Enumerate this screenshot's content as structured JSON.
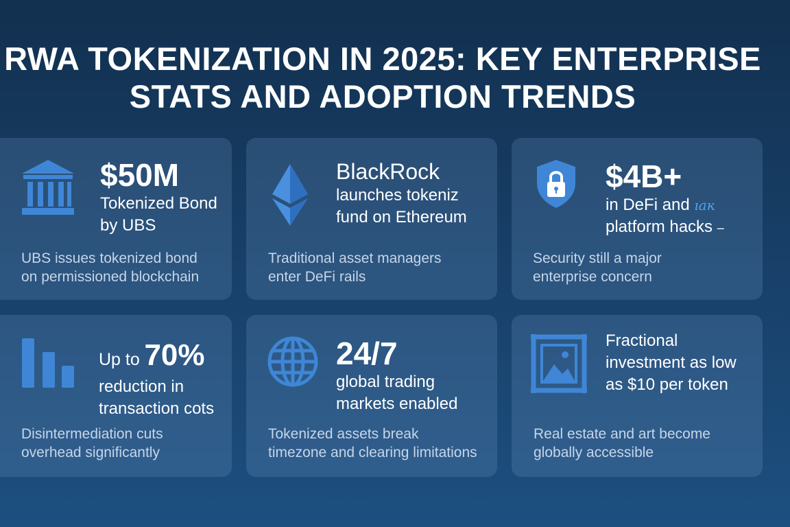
{
  "title": {
    "line1": "RWA TOKENIZATION IN 2025: KEY ENTERPRISE",
    "line2": "STATS AND ADOPTION TRENDS"
  },
  "cards": [
    {
      "icon": "bank-icon",
      "big": "$50M",
      "lines": [
        "Tokenized Bond",
        "by UBS"
      ],
      "desc": [
        "UBS issues tokenized bond",
        "on permissioned blockchain"
      ]
    },
    {
      "icon": "ethereum-icon",
      "mid": "BlackRock",
      "lines": [
        "launches tokeniz",
        "fund on Ethereum"
      ],
      "desc": [
        "Traditional asset managers",
        "enter DeFi rails"
      ]
    },
    {
      "icon": "shield-lock-icon",
      "big": "$4B+",
      "lines": [
        "in DeFi and",
        "platform hacks"
      ],
      "scribble": "ıaĸ",
      "dash": "–",
      "desc": [
        "Security still a major",
        "enterprise concern"
      ]
    },
    {
      "icon": "bar-chart-icon",
      "prefix": "Up to",
      "big": "70%",
      "lines": [
        "reduction in",
        "transaction cots"
      ],
      "desc": [
        "Disintermediation cuts",
        "overhead significantly"
      ]
    },
    {
      "icon": "globe-icon",
      "big": "24/7",
      "lines": [
        "global trading",
        "markets enabled"
      ],
      "desc": [
        "Tokenized assets break",
        "timezone and clearing limitations"
      ]
    },
    {
      "icon": "framed-picture-icon",
      "lines": [
        "Fractional",
        "investment as low",
        "as $10 per token"
      ],
      "desc": [
        "Real estate and art become",
        "globally accessible"
      ]
    }
  ],
  "colors": {
    "icon_blue": "#3f86d6",
    "icon_light": "#5aa0e6",
    "desc_text": "#c6d6ea"
  }
}
